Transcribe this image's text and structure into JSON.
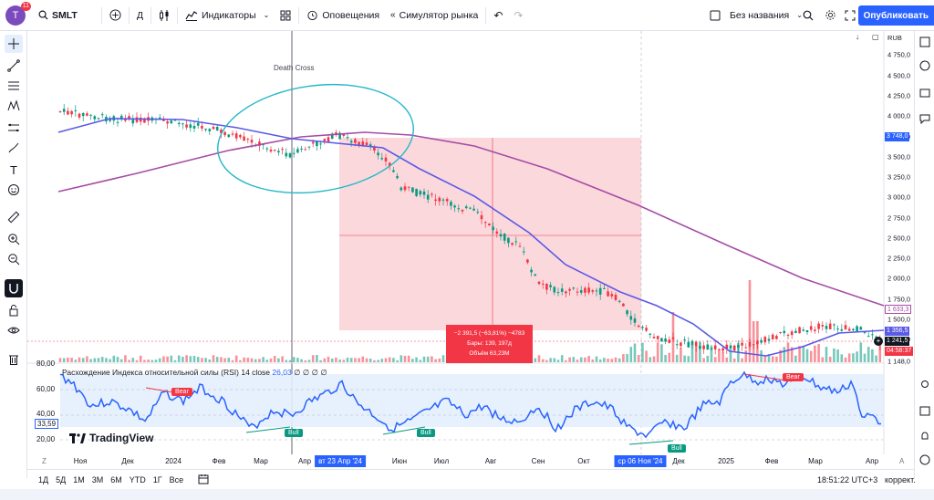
{
  "topbar": {
    "avatar_letter": "T",
    "avatar_badge": "11",
    "symbol": "SMLT",
    "interval": "Д",
    "indicators_label": "Индикаторы",
    "alerts_label": "Оповещения",
    "replay_label": "Симулятор рынка",
    "layout_name": "Без названия",
    "publish_label": "Опубликовать"
  },
  "price_axis": {
    "currency": "RUB",
    "labels": [
      "4 750,0",
      "4 500,0",
      "4 250,0",
      "4 000,0",
      "3 750,0",
      "3 500,0",
      "3 250,0",
      "3 000,0",
      "2 750,0",
      "2 500,0",
      "2 250,0",
      "2 000,0",
      "1 750,0",
      "1 500,0",
      "1 250,0",
      "1 148,0"
    ],
    "tag_top": "3 748,0",
    "tag_ma200": "1 633,3",
    "tag_ma50": "1 356,5",
    "tag_last": "1 241,5",
    "tag_countdown": "04:58:37"
  },
  "chart": {
    "annotation": "Death Cross",
    "measure_line1": "−2 391,5 (−63,81%) −4783",
    "measure_line2": "Бары: 139, 197д",
    "measure_line3": "Объём 63,23M",
    "colors": {
      "up": "#089981",
      "down": "#f23645",
      "ma50": "#5a5ae6",
      "ma200": "#a64ca6",
      "rsi": "#2962ff",
      "highlight_circle": "#22b8c8"
    }
  },
  "rsi": {
    "title": "Расхождение Индекса относительной силы (RSI)",
    "params": "14 close",
    "value": "26,03",
    "trail": "∅ ∅ ∅ ∅",
    "levels": [
      "80,00",
      "60,00",
      "40,00",
      "33,59",
      "20,00"
    ],
    "bear_label": "Bear",
    "bull_label": "Bull"
  },
  "logo": "TradingView",
  "time_axis": {
    "labels": [
      "Ноя",
      "Дек",
      "2024",
      "Фев",
      "Мар",
      "Апр",
      "Июн",
      "Июл",
      "Авг",
      "Сен",
      "Окт",
      "Дек",
      "2025",
      "Фев",
      "Мар",
      "Апр"
    ],
    "highlight_start": "вт 23 Апр '24",
    "highlight_end": "ср 06 Ноя '24"
  },
  "bottombar": {
    "ranges": [
      "1Д",
      "5Д",
      "1М",
      "3М",
      "6М",
      "YTD",
      "1Г",
      "Все"
    ],
    "clock": "18:51:22 UTC+3",
    "adjust": "коррект."
  }
}
